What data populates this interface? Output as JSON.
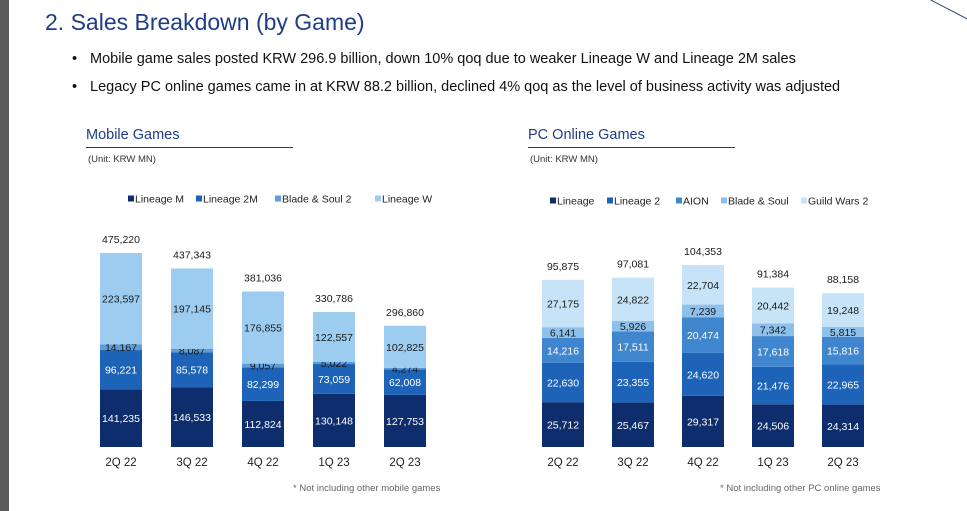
{
  "page": {
    "title": "2. Sales Breakdown (by Game)",
    "bullets": [
      "Mobile game sales posted KRW 296.9 billion, down 10% qoq due to weaker Lineage W and Lineage 2M sales",
      "Legacy PC online games came in at KRW 88.2 billion, declined 4% qoq as the level of business activity was adjusted"
    ]
  },
  "mobile": {
    "title": "Mobile Games",
    "unit": "(Unit: KRW MN)",
    "footnote": "* Not including other mobile games"
  },
  "pc": {
    "title": "PC Online Games",
    "unit": "(Unit: KRW MN)",
    "footnote": "* Not including other PC online games"
  },
  "chart_data": [
    {
      "type": "bar",
      "stacked": true,
      "title": "Mobile Games",
      "unit": "(Unit: KRW MN)",
      "categories": [
        "2Q 22",
        "3Q 22",
        "4Q 22",
        "1Q 23",
        "2Q 23"
      ],
      "series": [
        {
          "name": "Lineage M",
          "color": "#0d2d6c",
          "values": [
            141235,
            146533,
            112824,
            130148,
            127753
          ]
        },
        {
          "name": "Lineage 2M",
          "color": "#1d64b8",
          "values": [
            96221,
            85578,
            82299,
            73059,
            62008
          ]
        },
        {
          "name": "Blade & Soul 2",
          "color": "#5f9dda",
          "values": [
            14167,
            8087,
            9057,
            5022,
            4274
          ]
        },
        {
          "name": "Lineage W",
          "color": "#9ccdf1",
          "values": [
            223597,
            197145,
            176855,
            122557,
            102825
          ]
        }
      ],
      "totals": [
        475220,
        437343,
        381036,
        330786,
        296860
      ],
      "legend_position": "top",
      "grid": false
    },
    {
      "type": "bar",
      "stacked": true,
      "title": "PC Online Games",
      "unit": "(Unit: KRW MN)",
      "categories": [
        "2Q 22",
        "3Q 22",
        "4Q 22",
        "1Q 23",
        "2Q 23"
      ],
      "series": [
        {
          "name": "Lineage",
          "color": "#0d2d6c",
          "values": [
            25712,
            25467,
            29317,
            24506,
            24314
          ]
        },
        {
          "name": "Lineage 2",
          "color": "#1d64b8",
          "values": [
            22630,
            23355,
            24620,
            21476,
            22965
          ]
        },
        {
          "name": "AION",
          "color": "#3f86cf",
          "values": [
            14216,
            17511,
            20474,
            17618,
            15816
          ]
        },
        {
          "name": "Blade & Soul",
          "color": "#8dc1ec",
          "values": [
            6141,
            5926,
            7239,
            7342,
            5815
          ]
        },
        {
          "name": "Guild Wars 2",
          "color": "#c6e3f8",
          "values": [
            27175,
            24822,
            22704,
            20442,
            19248
          ]
        }
      ],
      "totals": [
        95875,
        97081,
        104353,
        91384,
        88158
      ],
      "legend_position": "top",
      "grid": false
    }
  ]
}
